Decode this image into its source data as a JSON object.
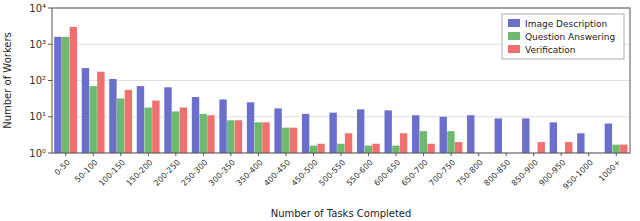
{
  "chart_data": {
    "type": "bar",
    "xlabel": "Number of Tasks Completed",
    "ylabel": "Number of Workers",
    "categories": [
      "0-50",
      "50-100",
      "100-150",
      "150-200",
      "200-250",
      "250-300",
      "300-350",
      "350-400",
      "400-450",
      "450-500",
      "500-550",
      "550-600",
      "600-650",
      "650-700",
      "700-750",
      "750-800",
      "800-850",
      "850-900",
      "900-950",
      "950-1000",
      "1000+"
    ],
    "series": [
      {
        "name": "Image Description",
        "color": "#6b6fcc",
        "values": [
          1600,
          220,
          110,
          70,
          65,
          35,
          30,
          25,
          17,
          12,
          13,
          16,
          15,
          11,
          10,
          11,
          9,
          9,
          7,
          3.5,
          6.5
        ]
      },
      {
        "name": "Question Answering",
        "color": "#6db96d",
        "values": [
          1600,
          70,
          32,
          18,
          14,
          12,
          8,
          7,
          5,
          1.6,
          1.8,
          1.6,
          1.6,
          4,
          4,
          1,
          1,
          1,
          1,
          1,
          1.7
        ]
      },
      {
        "name": "Verification",
        "color": "#f07070",
        "values": [
          3000,
          175,
          55,
          28,
          18,
          11,
          8,
          7,
          5,
          1.8,
          3.5,
          1.8,
          3.5,
          1.8,
          2,
          1,
          1,
          2,
          2,
          1,
          1.7
        ]
      }
    ],
    "log": "y",
    "ylim": [
      1,
      10000
    ],
    "yticks": [
      {
        "value": 1,
        "label": "10⁰"
      },
      {
        "value": 10,
        "label": "10¹"
      },
      {
        "value": 100,
        "label": "10²"
      },
      {
        "value": 1000,
        "label": "10³"
      },
      {
        "value": 10000,
        "label": "10⁴"
      }
    ],
    "grid": true,
    "legend": "top-right"
  }
}
